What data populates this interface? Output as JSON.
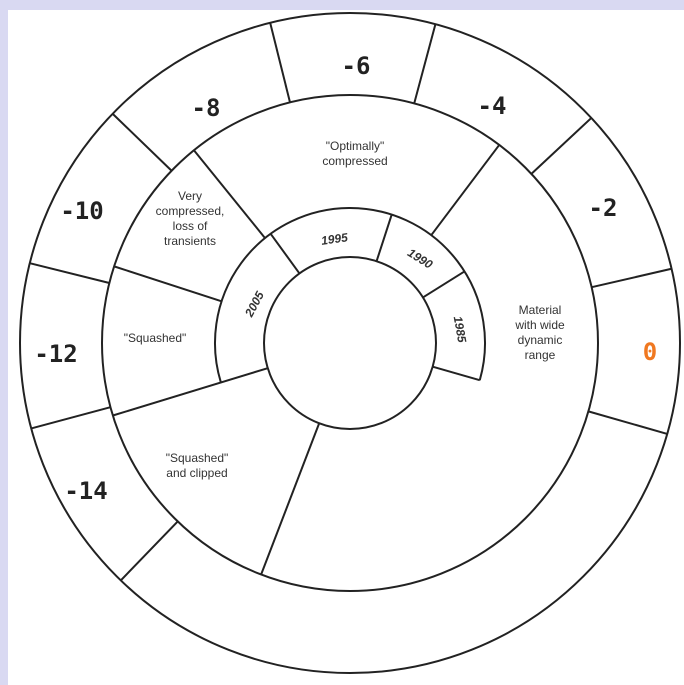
{
  "levels": [
    "-6",
    "-4",
    "-2",
    "0",
    "-8",
    "-10",
    "-12",
    "-14"
  ],
  "descriptions": [
    {
      "lines": [
        "\"Optimally\"",
        "compressed"
      ]
    },
    {
      "lines": [
        "Very",
        "compressed,",
        "loss of",
        "transients"
      ]
    },
    {
      "lines": [
        "\"Squashed\""
      ]
    },
    {
      "lines": [
        "\"Squashed\"",
        "and clipped"
      ]
    },
    {
      "lines": [
        "Material",
        "with wide",
        "dynamic",
        "range"
      ]
    }
  ],
  "years": [
    "2005",
    "1995",
    "1990",
    "1985"
  ]
}
